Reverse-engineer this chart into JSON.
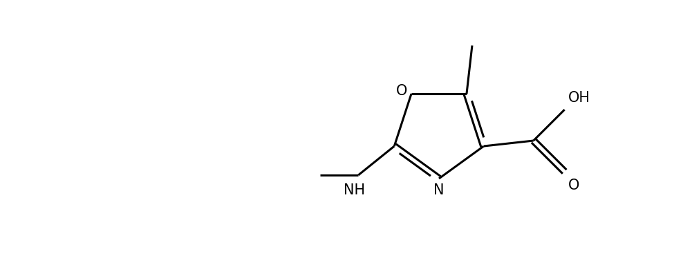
{
  "bg_color": "#ffffff",
  "line_color": "#000000",
  "line_width": 2.2,
  "font_size": 15,
  "figsize": [
    10.01,
    3.96
  ],
  "dpi": 100,
  "xlim": [
    0,
    10.01
  ],
  "ylim": [
    0,
    3.96
  ]
}
